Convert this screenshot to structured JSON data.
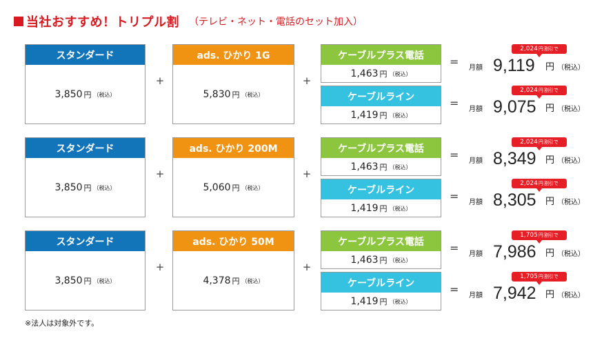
{
  "header": {
    "title": "当社おすすめ！トリプル割",
    "subtitle": "（テレビ・ネット・電話のセット加入）"
  },
  "groups": [
    {
      "tv": {
        "label": "スタンダード",
        "price": "3,850",
        "yen": "円",
        "tax": "（税込）"
      },
      "net": {
        "label": "ads. ひかり 1G",
        "price": "5,830",
        "yen": "円",
        "tax": "（税込）"
      },
      "phone1": {
        "label": "ケーブルプラス電話",
        "price": "1,463",
        "yen": "円",
        "tax": "（税込）"
      },
      "phone2": {
        "label": "ケーブルライン",
        "price": "1,419",
        "yen": "円",
        "tax": "（税込）"
      },
      "result1": {
        "monthly": "月額",
        "amount": "9,119",
        "yen": "円",
        "tax": "（税込）",
        "discount": "2,024",
        "discount_yen": "円",
        "discount_label": "割引で"
      },
      "result2": {
        "monthly": "月額",
        "amount": "9,075",
        "yen": "円",
        "tax": "（税込）",
        "discount": "2,024",
        "discount_yen": "円",
        "discount_label": "割引で"
      }
    },
    {
      "tv": {
        "label": "スタンダード",
        "price": "3,850",
        "yen": "円",
        "tax": "（税込）"
      },
      "net": {
        "label": "ads. ひかり 200M",
        "price": "5,060",
        "yen": "円",
        "tax": "（税込）"
      },
      "phone1": {
        "label": "ケーブルプラス電話",
        "price": "1,463",
        "yen": "円",
        "tax": "（税込）"
      },
      "phone2": {
        "label": "ケーブルライン",
        "price": "1,419",
        "yen": "円",
        "tax": "（税込）"
      },
      "result1": {
        "monthly": "月額",
        "amount": "8,349",
        "yen": "円",
        "tax": "（税込）",
        "discount": "2,024",
        "discount_yen": "円",
        "discount_label": "割引で"
      },
      "result2": {
        "monthly": "月額",
        "amount": "8,305",
        "yen": "円",
        "tax": "（税込）",
        "discount": "2,024",
        "discount_yen": "円",
        "discount_label": "割引で"
      }
    },
    {
      "tv": {
        "label": "スタンダード",
        "price": "3,850",
        "yen": "円",
        "tax": "（税込）"
      },
      "net": {
        "label": "ads. ひかり 50M",
        "price": "4,378",
        "yen": "円",
        "tax": "（税込）"
      },
      "phone1": {
        "label": "ケーブルプラス電話",
        "price": "1,463",
        "yen": "円",
        "tax": "（税込）"
      },
      "phone2": {
        "label": "ケーブルライン",
        "price": "1,419",
        "yen": "円",
        "tax": "（税込）"
      },
      "result1": {
        "monthly": "月額",
        "amount": "7,986",
        "yen": "円",
        "tax": "（税込）",
        "discount": "1,705",
        "discount_yen": "円",
        "discount_label": "割引で"
      },
      "result2": {
        "monthly": "月額",
        "amount": "7,942",
        "yen": "円",
        "tax": "（税込）",
        "discount": "1,705",
        "discount_yen": "円",
        "discount_label": "割引で"
      }
    }
  ],
  "symbols": {
    "plus": "+",
    "equals": "="
  },
  "note": "※法人は対象外です。",
  "colors": {
    "accent": "#d81920",
    "tv": "#1275b9",
    "net": "#f09212",
    "phone": "#8cc63e",
    "line": "#35c2e0",
    "badge": "#e61e25"
  }
}
